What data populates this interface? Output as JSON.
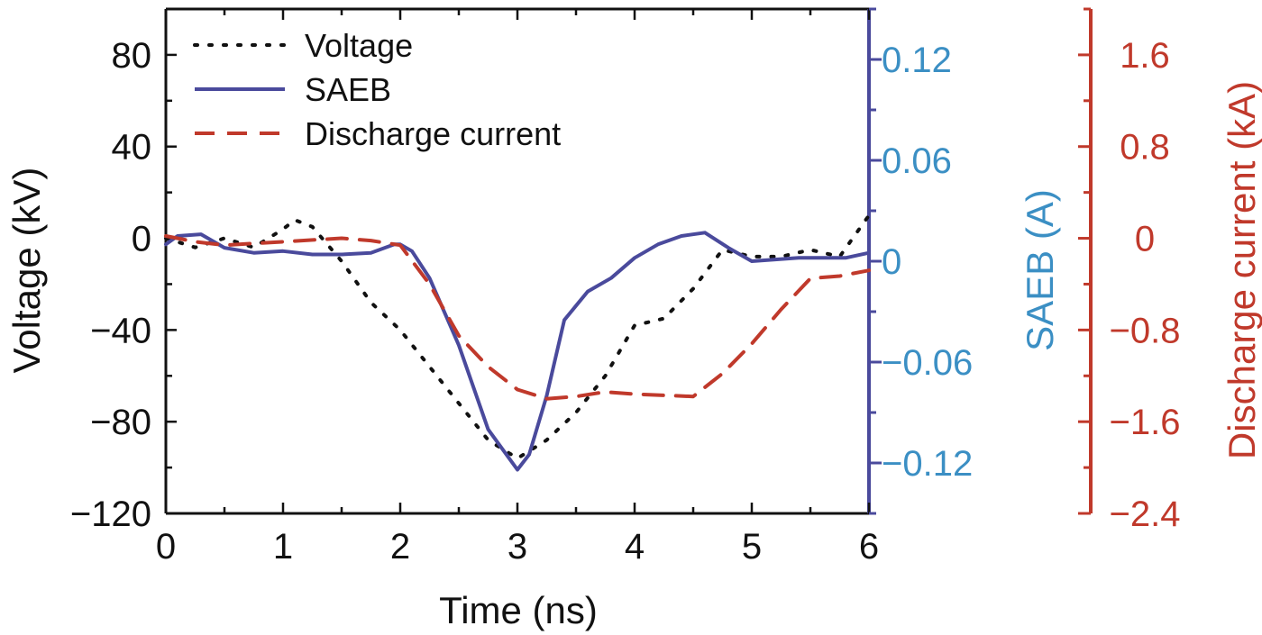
{
  "chart_data": {
    "type": "line",
    "xlabel": "Time (ns)",
    "xlim": [
      0,
      6
    ],
    "x_ticks": [
      "0",
      "1",
      "2",
      "3",
      "4",
      "5",
      "6"
    ],
    "grid": false,
    "legend_position": "top-left",
    "axes": {
      "left": {
        "label": "Voltage (kV)",
        "lim": [
          -120,
          100
        ],
        "ticks": [
          "80",
          "40",
          "0",
          "−40",
          "−80",
          "−120"
        ],
        "tick_values": [
          80,
          40,
          0,
          -40,
          -80,
          -120
        ],
        "color": "#111111"
      },
      "right1": {
        "label": "SAEB (A)",
        "lim": [
          -0.15,
          0.15
        ],
        "ticks": [
          "0.12",
          "0.06",
          "0",
          "−0.06",
          "−0.12"
        ],
        "tick_values": [
          0.12,
          0.06,
          0,
          -0.06,
          -0.12
        ],
        "color": "#3b8fc4",
        "spine_color": "#4a4a9c"
      },
      "right2": {
        "label": "Discharge current (kA)",
        "lim": [
          -2.4,
          2.0
        ],
        "ticks": [
          "1.6",
          "0.8",
          "0",
          "−0.8",
          "−1.6",
          "−2.4"
        ],
        "tick_values": [
          1.6,
          0.8,
          0,
          -0.8,
          -1.6,
          -2.4
        ],
        "color": "#c0392b"
      }
    },
    "series": [
      {
        "name": "Voltage",
        "axis": "left",
        "style": "dotted",
        "color": "#111111",
        "x": [
          0,
          0.25,
          0.5,
          0.75,
          1.0,
          1.1,
          1.25,
          1.5,
          1.75,
          2.0,
          2.25,
          2.5,
          2.75,
          3.0,
          3.25,
          3.5,
          3.75,
          4.0,
          4.25,
          4.5,
          4.75,
          5.0,
          5.25,
          5.5,
          5.75,
          6.0
        ],
        "y": [
          0,
          -4,
          0,
          -4,
          4,
          8,
          5,
          -10,
          -28,
          -40,
          -56,
          -72,
          -88,
          -96,
          -88,
          -76,
          -60,
          -38,
          -35,
          -22,
          -5,
          -8,
          -8,
          -5,
          -8,
          10
        ]
      },
      {
        "name": "SAEB",
        "axis": "right1",
        "style": "solid",
        "color": "#4a4a9c",
        "x": [
          0,
          0.1,
          0.3,
          0.5,
          0.75,
          1.0,
          1.25,
          1.5,
          1.75,
          1.95,
          2.0,
          2.1,
          2.25,
          2.5,
          2.75,
          3.0,
          3.1,
          3.25,
          3.4,
          3.6,
          3.8,
          4.0,
          4.2,
          4.4,
          4.6,
          4.8,
          5.0,
          5.2,
          5.4,
          5.6,
          5.8,
          6.0
        ],
        "y": [
          0.01,
          0.015,
          0.016,
          0.008,
          0.005,
          0.006,
          0.004,
          0.004,
          0.005,
          0.01,
          0.01,
          0.006,
          -0.01,
          -0.05,
          -0.1,
          -0.124,
          -0.115,
          -0.08,
          -0.035,
          -0.018,
          -0.01,
          0.002,
          0.01,
          0.015,
          0.017,
          0.008,
          0.0,
          0.001,
          0.002,
          0.002,
          0.002,
          0.005
        ]
      },
      {
        "name": "Discharge current",
        "axis": "right2",
        "style": "dashed",
        "color": "#c0392b",
        "x": [
          0,
          0.25,
          0.5,
          1.0,
          1.5,
          1.75,
          2.0,
          2.25,
          2.5,
          2.75,
          3.0,
          3.25,
          3.5,
          3.75,
          4.0,
          4.25,
          4.5,
          4.75,
          5.0,
          5.25,
          5.5,
          5.75,
          6.0
        ],
        "y": [
          0.02,
          -0.03,
          -0.06,
          -0.03,
          0.0,
          -0.02,
          -0.06,
          -0.4,
          -0.85,
          -1.12,
          -1.32,
          -1.4,
          -1.38,
          -1.34,
          -1.36,
          -1.37,
          -1.38,
          -1.18,
          -0.92,
          -0.62,
          -0.35,
          -0.33,
          -0.28
        ]
      }
    ]
  }
}
